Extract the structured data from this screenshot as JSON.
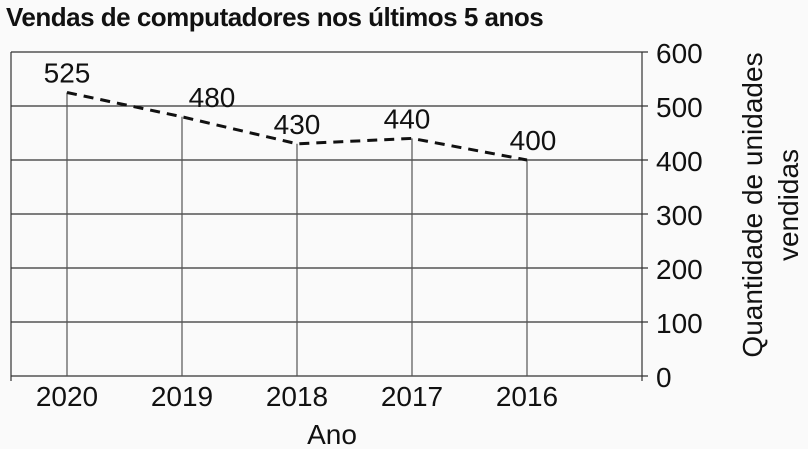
{
  "chart_data": {
    "type": "line",
    "title": "Vendas de computadores nos últimos 5 anos",
    "xlabel": "Ano",
    "ylabel": "Quantidade de unidades vendidas",
    "ylabel_lines": [
      "Quantidade de unidades",
      "vendidas"
    ],
    "categories": [
      "2020",
      "2019",
      "2018",
      "2017",
      "2016"
    ],
    "values": [
      525,
      480,
      430,
      440,
      400
    ],
    "data_labels": [
      "525",
      "480",
      "430",
      "440",
      "400"
    ],
    "ylim": [
      0,
      600
    ],
    "yticks": [
      0,
      100,
      200,
      300,
      400,
      500,
      600
    ],
    "y_axis_side": "right",
    "grid": true,
    "line_style": "dashed",
    "colors": {
      "line": "#111111",
      "grid": "#333333"
    }
  }
}
